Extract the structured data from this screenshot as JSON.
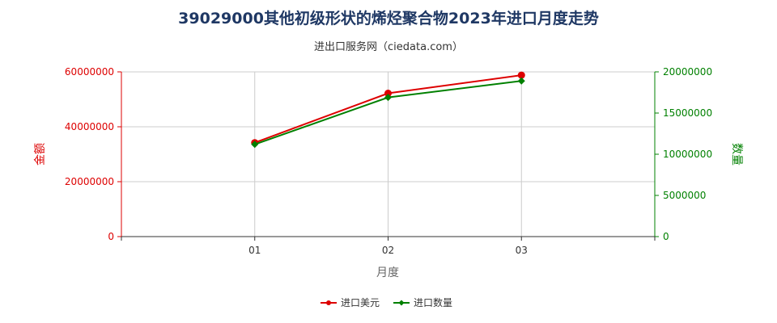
{
  "colors": {
    "title": "#1f3864",
    "left_axis": "#dd0000",
    "right_axis": "#008000",
    "grid": "#cccccc",
    "axis_line": "#333333"
  },
  "chart_data": {
    "type": "line",
    "title": "39029000其他初级形状的烯烃聚合物2023年进口月度走势",
    "subtitle": "进出口服务网（ciedata.com）",
    "xlabel": "月度",
    "ylabel_left": "金额",
    "ylabel_right": "数量",
    "categories": [
      "01",
      "02",
      "03"
    ],
    "ylim_left": [
      0,
      60000000
    ],
    "ylim_right": [
      0,
      20000000
    ],
    "yticks_left": [
      "0",
      "20000000",
      "40000000",
      "60000000"
    ],
    "yticks_right": [
      "0",
      "5000000",
      "10000000",
      "15000000",
      "20000000"
    ],
    "grid": true,
    "legend_position": "bottom",
    "series": [
      {
        "name": "进口美元",
        "axis": "left",
        "color": "#dd0000",
        "marker": "circle",
        "values": [
          34200000,
          52200000,
          58800000
        ]
      },
      {
        "name": "进口数量",
        "axis": "right",
        "color": "#008000",
        "marker": "diamond",
        "values": [
          11200000,
          16900000,
          18900000
        ]
      }
    ]
  }
}
